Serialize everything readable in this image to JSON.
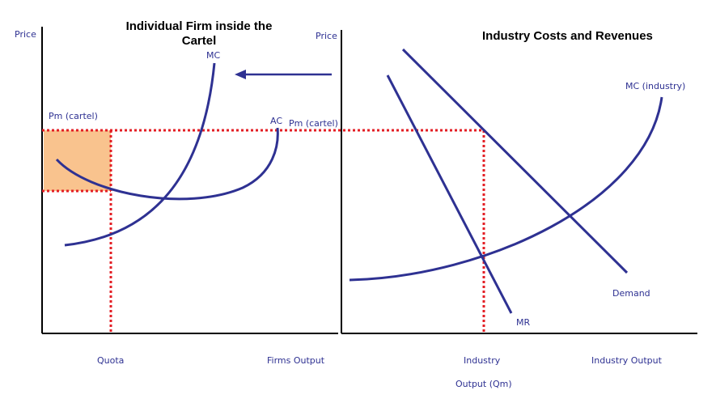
{
  "left_panel": {
    "y_axis_label": "Price",
    "title": [
      "Individual Firm inside the",
      "Cartel"
    ],
    "mc_label": "MC",
    "ac_label": "AC",
    "price_label": "Pm (cartel)",
    "quota_label": "Quota",
    "x_axis_label": "Firms Output"
  },
  "right_panel": {
    "y_axis_label": "Price",
    "title": "Industry Costs and Revenues",
    "price_label": "Pm (cartel)",
    "mc_label": "MC (industry)",
    "demand_label": "Demand",
    "mr_label": "MR",
    "quantity_label": [
      "Industry",
      "Output (Qm)"
    ],
    "x_axis_label": "Industry Output"
  }
}
